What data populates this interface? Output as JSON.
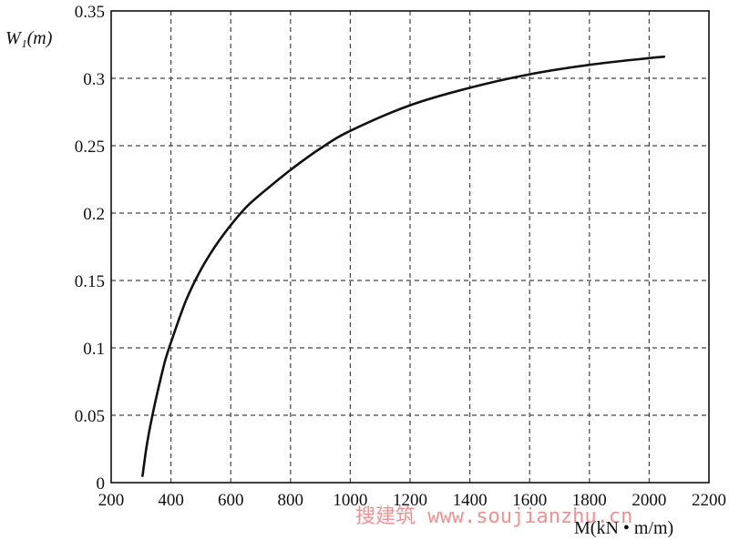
{
  "chart_data": {
    "type": "line",
    "title": "",
    "xlabel": "M(kN • m/m)",
    "ylabel": "W₁(m)",
    "xlim": [
      200,
      2200
    ],
    "ylim": [
      0,
      0.35
    ],
    "x_ticks": [
      "200",
      "400",
      "600",
      "800",
      "1000",
      "1200",
      "1400",
      "1600",
      "1800",
      "2000",
      "2200"
    ],
    "y_ticks": [
      "0",
      "0.05",
      "0.1",
      "0.15",
      "0.2",
      "0.25",
      "0.3",
      "0.35"
    ],
    "grid": "dashed",
    "legend": "none",
    "series": [
      {
        "x": [
          305,
          320,
          340,
          360,
          380,
          400,
          450,
          500,
          550,
          600,
          650,
          700,
          800,
          900,
          1000,
          1200,
          1400,
          1600,
          1800,
          2000,
          2050
        ],
        "y": [
          0.005,
          0.029,
          0.052,
          0.072,
          0.09,
          0.104,
          0.135,
          0.158,
          0.176,
          0.191,
          0.204,
          0.214,
          0.232,
          0.248,
          0.261,
          0.28,
          0.293,
          0.303,
          0.31,
          0.315,
          0.316
        ]
      }
    ]
  },
  "watermark": "搜建筑 www.soujianzhu.cn",
  "colors": {
    "line": "#111111",
    "grid": "#444444",
    "watermark": "#e03a3a"
  }
}
